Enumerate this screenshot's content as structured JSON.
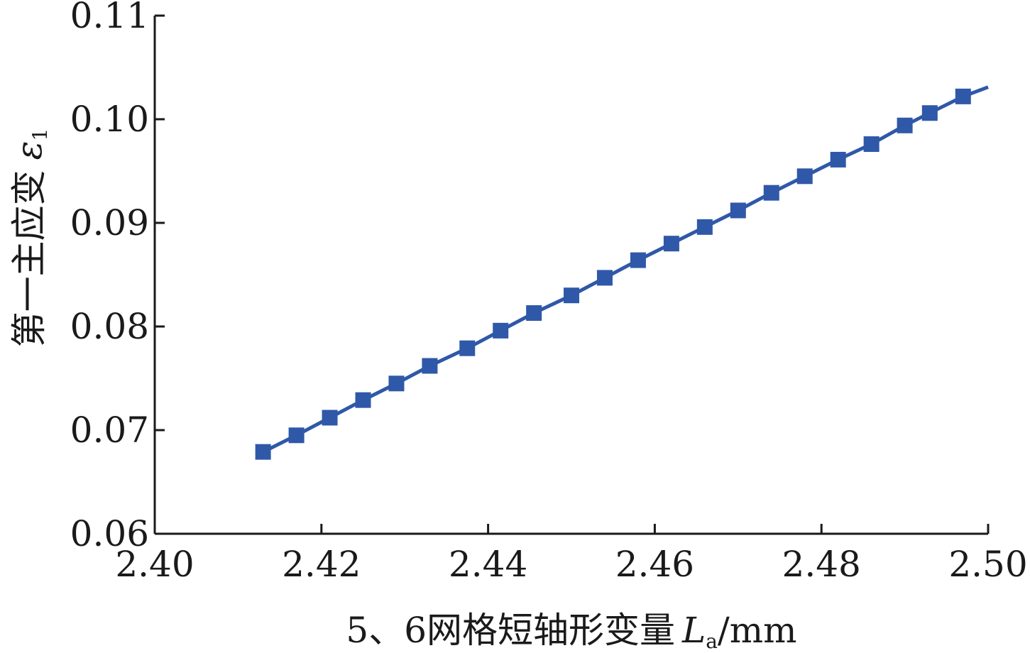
{
  "chart_data": {
    "type": "line",
    "ylabel": {
      "text": "第一主应变",
      "symbol": "ε",
      "subscript": "1"
    },
    "xlabel": {
      "text": "5、6网格短轴形变量",
      "symbol": "L",
      "subscript": "a",
      "unit": "/mm"
    },
    "xlim": [
      2.4,
      2.5
    ],
    "ylim": [
      0.06,
      0.11
    ],
    "xticks": [
      "2.40",
      "2.42",
      "2.44",
      "2.46",
      "2.48",
      "2.50"
    ],
    "yticks": [
      "0.06",
      "0.07",
      "0.08",
      "0.09",
      "0.10",
      "0.11"
    ],
    "grid": false,
    "legend": "none",
    "series": [
      {
        "color": "#2f58a8",
        "marker": "square",
        "line_end": [
          2.5,
          0.1031
        ],
        "points": [
          [
            2.413,
            0.0679
          ],
          [
            2.417,
            0.0695
          ],
          [
            2.421,
            0.0712
          ],
          [
            2.425,
            0.0729
          ],
          [
            2.429,
            0.0745
          ],
          [
            2.433,
            0.0762
          ],
          [
            2.4375,
            0.0779
          ],
          [
            2.4415,
            0.0796
          ],
          [
            2.4455,
            0.0813
          ],
          [
            2.45,
            0.083
          ],
          [
            2.454,
            0.0847
          ],
          [
            2.458,
            0.0864
          ],
          [
            2.462,
            0.088
          ],
          [
            2.466,
            0.0896
          ],
          [
            2.47,
            0.0912
          ],
          [
            2.474,
            0.0929
          ],
          [
            2.478,
            0.0945
          ],
          [
            2.482,
            0.0961
          ],
          [
            2.486,
            0.0976
          ],
          [
            2.49,
            0.0994
          ],
          [
            2.493,
            0.1006
          ],
          [
            2.497,
            0.1022
          ]
        ]
      }
    ]
  }
}
